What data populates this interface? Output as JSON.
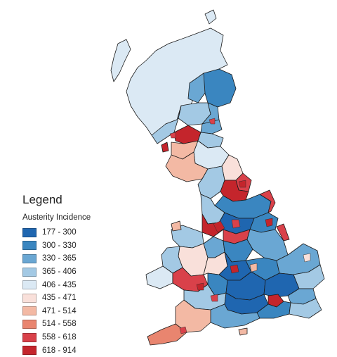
{
  "legend": {
    "title": "Legend",
    "subtitle": "Austerity Incidence",
    "classes": [
      {
        "label": "177 - 300",
        "color": "#1f66b0"
      },
      {
        "label": "300 - 330",
        "color": "#3a86c0"
      },
      {
        "label": "330 - 365",
        "color": "#6aa7d3"
      },
      {
        "label": "365 - 406",
        "color": "#a3c9e4"
      },
      {
        "label": "406 - 435",
        "color": "#dbe9f4"
      },
      {
        "label": "435 - 471",
        "color": "#f9e0da"
      },
      {
        "label": "471 - 514",
        "color": "#f3b9a4"
      },
      {
        "label": "514 - 558",
        "color": "#e9856f"
      },
      {
        "label": "558 - 618",
        "color": "#d9414a"
      },
      {
        "label": "618 - 914",
        "color": "#c4252c"
      }
    ]
  }
}
